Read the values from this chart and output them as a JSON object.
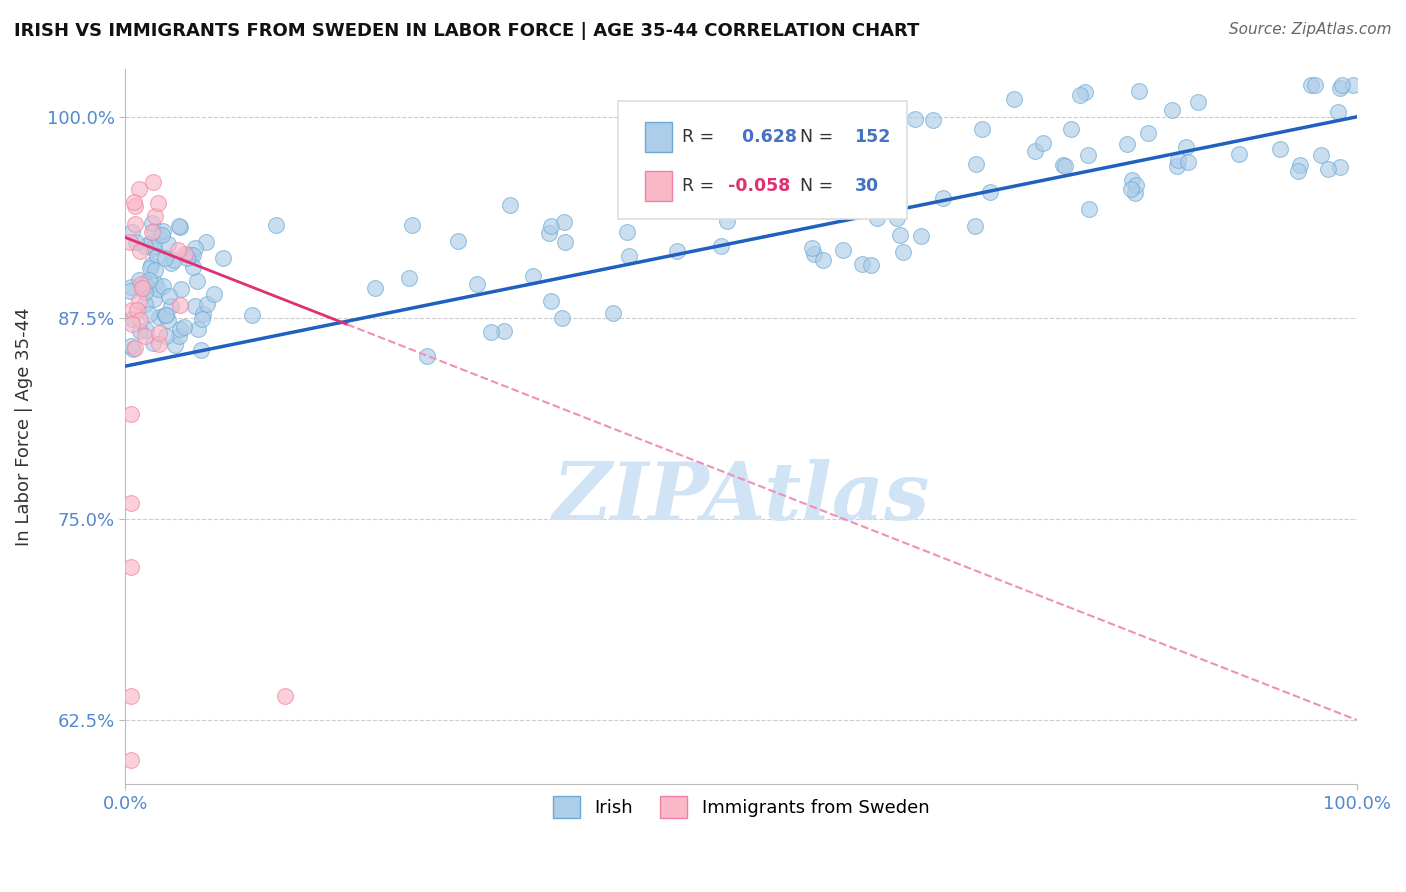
{
  "title": "IRISH VS IMMIGRANTS FROM SWEDEN IN LABOR FORCE | AGE 35-44 CORRELATION CHART",
  "source": "Source: ZipAtlas.com",
  "ylabel": "In Labor Force | Age 35-44",
  "xlim": [
    0.0,
    1.0
  ],
  "ylim": [
    0.585,
    1.03
  ],
  "yticks": [
    0.625,
    0.75,
    0.875,
    1.0
  ],
  "ytick_labels": [
    "62.5%",
    "75.0%",
    "87.5%",
    "100.0%"
  ],
  "xticks": [
    0.0,
    1.0
  ],
  "xtick_labels": [
    "0.0%",
    "100.0%"
  ],
  "R_irish": 0.628,
  "N_irish": 152,
  "R_sweden": -0.058,
  "N_sweden": 30,
  "irish_dot_fill": "#aecde8",
  "irish_dot_edge": "#6aaad4",
  "sweden_dot_fill": "#f9b8c8",
  "sweden_dot_edge": "#f080a0",
  "irish_line_color": "#2060c0",
  "sweden_line_solid_color": "#e03070",
  "sweden_line_dash_color": "#f090b8",
  "watermark_color": "#d0e4f5",
  "grid_color": "#cccccc",
  "tick_color": "#5588cc",
  "title_color": "#111111",
  "source_color": "#666666",
  "ylabel_color": "#333333",
  "legend_box_color": "#dddddd"
}
